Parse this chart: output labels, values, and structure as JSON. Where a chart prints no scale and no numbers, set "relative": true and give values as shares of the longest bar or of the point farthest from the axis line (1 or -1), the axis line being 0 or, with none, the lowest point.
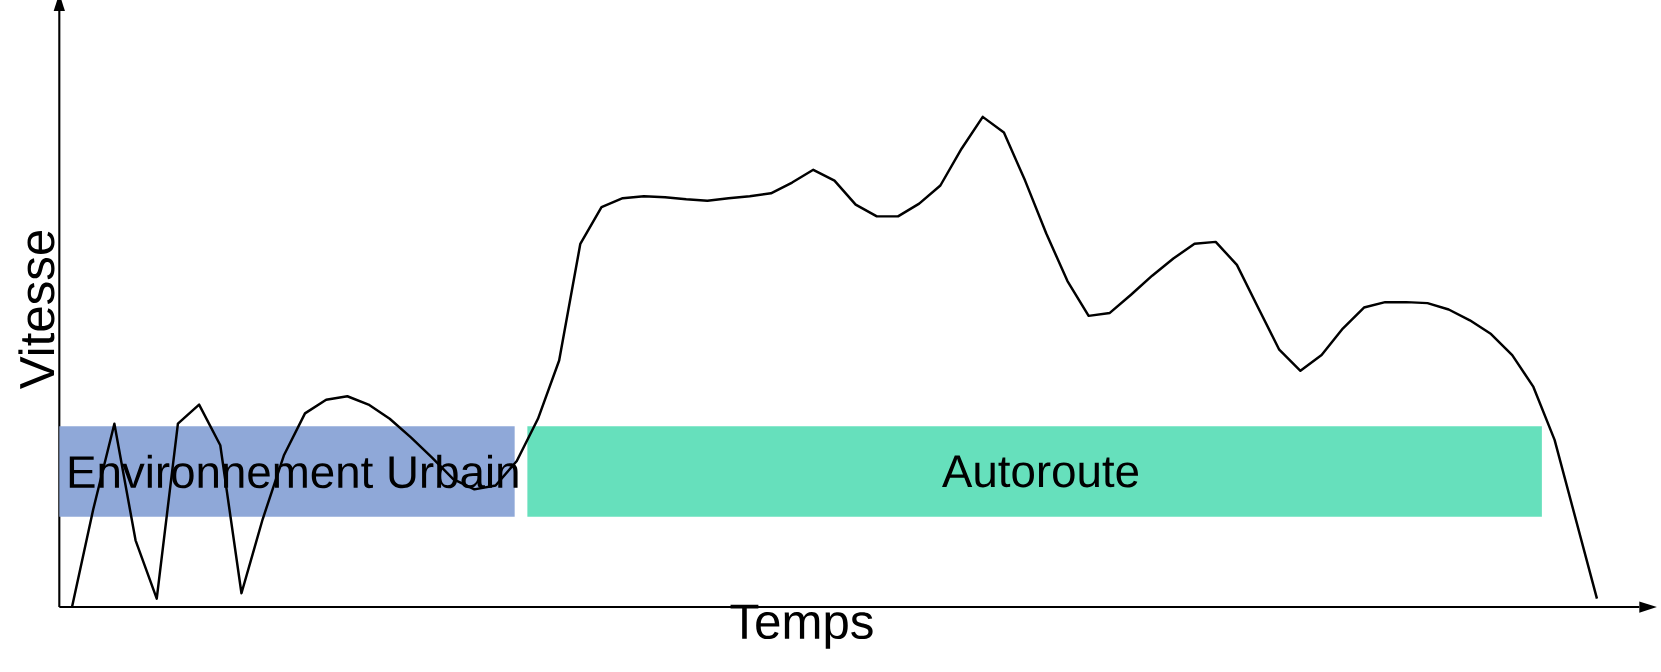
{
  "chart_data": {
    "type": "line",
    "relative": true,
    "xlabel": "Temps",
    "ylabel": "Vitesse",
    "marker": "none",
    "categories": [
      null,
      null,
      null,
      null,
      null,
      null,
      null,
      null,
      null,
      null,
      null,
      null,
      null,
      null,
      null,
      null,
      null,
      null,
      null,
      null,
      null,
      null,
      null,
      null,
      null,
      null,
      null,
      null,
      null,
      null,
      null,
      null,
      null,
      null,
      null,
      null,
      null,
      null,
      null,
      null,
      null,
      null,
      null,
      null,
      null,
      null,
      null,
      null,
      null,
      null,
      null,
      null,
      null,
      null,
      null,
      null,
      null,
      null,
      null,
      null,
      null,
      null,
      null,
      null,
      null,
      null,
      null,
      null,
      null,
      null,
      null,
      null,
      null
    ],
    "series": [
      {
        "color": "#000000",
        "values": [
          0,
          0.199,
          0.374,
          0.136,
          0.017,
          0.374,
          0.413,
          0.33,
          0.028,
          0.179,
          0.309,
          0.395,
          0.423,
          0.43,
          0.413,
          0.384,
          0.346,
          0.305,
          0.261,
          0.24,
          0.248,
          0.298,
          0.384,
          0.503,
          0.741,
          0.816,
          0.834,
          0.838,
          0.836,
          0.832,
          0.829,
          0.834,
          0.838,
          0.844,
          0.866,
          0.892,
          0.87,
          0.821,
          0.797,
          0.797,
          0.823,
          0.86,
          0.935,
          1.0,
          0.968,
          0.87,
          0.762,
          0.665,
          0.594,
          0.6,
          0.637,
          0.676,
          0.711,
          0.741,
          0.745,
          0.698,
          0.611,
          0.525,
          0.482,
          0.514,
          0.568,
          0.611,
          0.622,
          0.622,
          0.62,
          0.607,
          0.585,
          0.557,
          0.514,
          0.449,
          0.341,
          0.179,
          0.017
        ]
      }
    ],
    "annotations": [
      "Environnement Urbain",
      "Autoroute"
    ]
  }
}
